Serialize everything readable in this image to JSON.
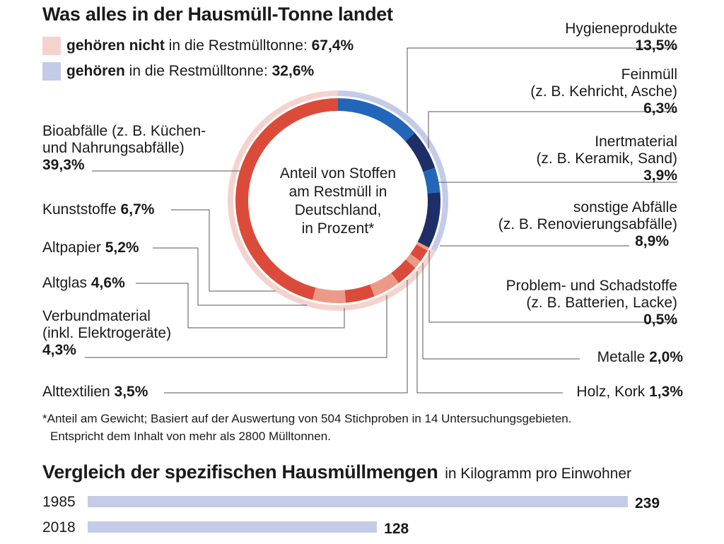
{
  "title": "Was alles in der Hausmüll-Tonne landet",
  "legend": {
    "not_bold": "gehören nicht",
    "not_rest": " in die Restmülltonne: ",
    "not_value": "67,4%",
    "yes_bold": "gehören",
    "yes_rest": " in die Restmülltonne: ",
    "yes_value": "32,6%",
    "colors": {
      "not": "#f4d3ce",
      "yes": "#c4cbe6"
    }
  },
  "center_label": [
    "Anteil von Stoffen",
    "am Restmüll in",
    "Deutschland,",
    "in Prozent*"
  ],
  "labels": {
    "hygiene": {
      "lines": [
        "Hygieneprodukte"
      ],
      "value": "13,5%"
    },
    "feinmuell": {
      "lines": [
        "Feinmüll",
        "(z. B. Kehricht, Asche)"
      ],
      "value": "6,3%"
    },
    "inert": {
      "lines": [
        "Inertmaterial",
        "(z. B. Keramik, Sand)"
      ],
      "value": "3,9%"
    },
    "sonstige": {
      "lines": [
        "sonstige Abfälle",
        "(z. B. Renovierungsabfälle)"
      ],
      "value": "8,9%"
    },
    "problem": {
      "lines": [
        "Problem- und Schadstoffe",
        "(z. B. Batterien, Lacke)"
      ],
      "value": "0,5%"
    },
    "metalle": {
      "text": "Metalle ",
      "value": "2,0%"
    },
    "holz": {
      "text": "Holz, Kork ",
      "value": "1,3%"
    },
    "bio": {
      "lines": [
        "Bioabfälle (z. B. Küchen-",
        "und Nahrungsabfälle)"
      ],
      "value": "39,3%"
    },
    "kunststoffe": {
      "text": "Kunststoffe ",
      "value": "6,7%"
    },
    "altpapier": {
      "text": "Altpapier ",
      "value": "5,2%"
    },
    "altglas": {
      "text": "Altglas ",
      "value": "4,6%"
    },
    "verbund": {
      "lines": [
        "Verbundmaterial",
        "(inkl. Elektrogeräte)"
      ],
      "value": "4,3%"
    },
    "alttextilien": {
      "text": "Alttextilien ",
      "value": "3,5%"
    }
  },
  "footnote": [
    "*Anteil am Gewicht; Basiert auf der Auswertung von 504 Stichproben in 14 Untersuchungsgebieten.",
    "Entspricht dem Inhalt von mehr als 2800 Mülltonnen."
  ],
  "chart_data": [
    {
      "type": "pie",
      "categories": [
        "Hygieneprodukte",
        "Feinmüll",
        "Inertmaterial",
        "sonstige Abfälle",
        "Problem- und Schadstoffe",
        "Metalle",
        "Holz, Kork",
        "Alttextilien",
        "Verbundmaterial",
        "Altglas",
        "Altpapier",
        "Kunststoffe",
        "Bioabfälle"
      ],
      "values": [
        13.5,
        6.3,
        3.9,
        8.9,
        0.5,
        2.0,
        1.3,
        3.5,
        4.3,
        4.6,
        5.2,
        6.7,
        39.3
      ],
      "colors": [
        "#2166b8",
        "#1d2f66",
        "#2166b8",
        "#1d2f66",
        "#ec9a87",
        "#dc4a3a",
        "#ec9a87",
        "#dc4a3a",
        "#ec9a87",
        "#dc4a3a",
        "#ec9a87",
        "#dc4a3a",
        "#dc4a3a"
      ],
      "outer_ring": {
        "categories": [
          "gehören in die Restmülltonne",
          "gehören nicht in die Restmülltonne"
        ],
        "values": [
          32.6,
          67.4
        ],
        "colors": [
          "#c4cbe6",
          "#f4d3ce"
        ]
      }
    },
    {
      "type": "bar",
      "title": "Vergleich der spezifischen Hausmüllmengen",
      "subtitle": "in Kilogramm pro Einwohner",
      "categories": [
        "1985",
        "2018"
      ],
      "values": [
        239,
        128
      ],
      "value_labels": [
        "239",
        "128"
      ],
      "color": "#c4cbe6"
    }
  ]
}
